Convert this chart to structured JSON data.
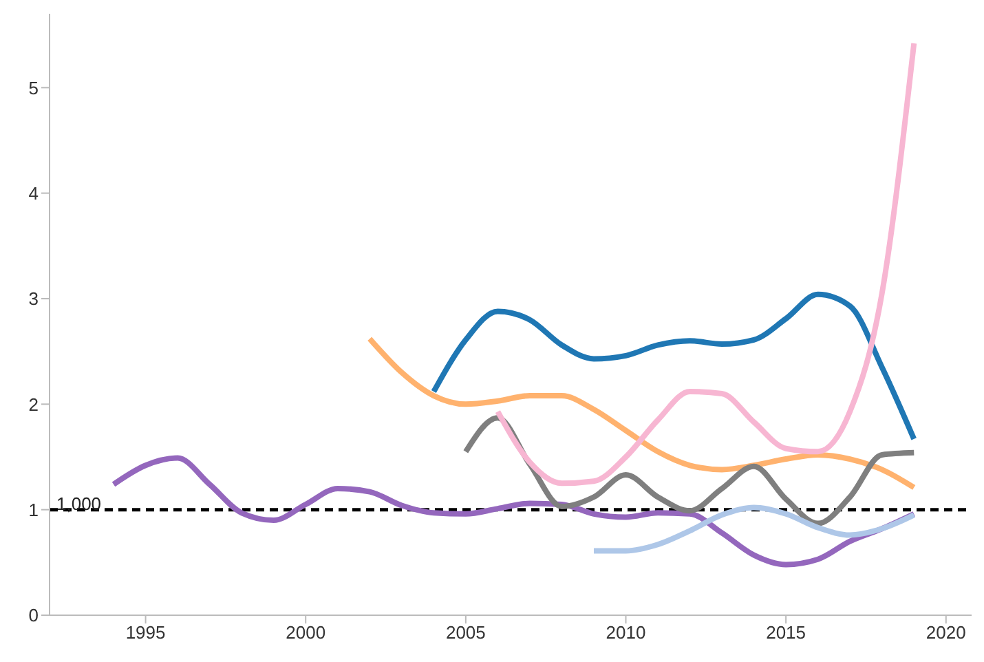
{
  "chart_data": {
    "type": "line",
    "xlim": [
      1992,
      2020.8
    ],
    "xticks": [
      1995,
      2000,
      2005,
      2010,
      2015,
      2020
    ],
    "ylim": [
      0,
      5.7
    ],
    "yticks": [
      0,
      1,
      2,
      3,
      4,
      5
    ],
    "grid": false,
    "legend": false,
    "marker": "none",
    "line_style": "solid",
    "ref_lines": [
      {
        "axis": "y",
        "value": 1,
        "label": "1,000",
        "color": "#000000",
        "line_style": "dashed"
      }
    ],
    "series": [
      {
        "color": "#9467bd",
        "x": [
          1994,
          1995,
          1996,
          1997,
          1998,
          1999,
          2000,
          2001,
          2002,
          2003,
          2004,
          2005,
          2006,
          2007,
          2008,
          2009,
          2010,
          2011,
          2012,
          2013,
          2014,
          2015,
          2016,
          2017,
          2018,
          2019
        ],
        "values": [
          1.24,
          1.42,
          1.49,
          1.24,
          0.97,
          0.9,
          1.05,
          1.2,
          1.17,
          1.04,
          0.97,
          0.96,
          1.01,
          1.06,
          1.05,
          0.96,
          0.93,
          0.97,
          0.96,
          0.78,
          0.57,
          0.48,
          0.53,
          0.7,
          0.82,
          0.96
        ]
      },
      {
        "color": "#ffb26e",
        "x": [
          2002,
          2003,
          2004,
          2005,
          2006,
          2007,
          2008,
          2009,
          2010,
          2011,
          2012,
          2013,
          2014,
          2015,
          2016,
          2017,
          2018,
          2019
        ],
        "values": [
          2.62,
          2.3,
          2.08,
          2.0,
          2.03,
          2.08,
          2.08,
          1.95,
          1.75,
          1.55,
          1.42,
          1.38,
          1.42,
          1.48,
          1.52,
          1.48,
          1.38,
          1.21
        ]
      },
      {
        "color": "#1f77b4",
        "x": [
          2004,
          2005,
          2006,
          2007,
          2008,
          2009,
          2010,
          2011,
          2012,
          2013,
          2014,
          2015,
          2016,
          2017,
          2018,
          2019
        ],
        "values": [
          2.12,
          2.61,
          2.88,
          2.8,
          2.56,
          2.43,
          2.46,
          2.56,
          2.6,
          2.57,
          2.61,
          2.81,
          3.04,
          2.93,
          2.35,
          1.67
        ]
      },
      {
        "color": "#7f7f7f",
        "x": [
          2005,
          2006,
          2007,
          2008,
          2009,
          2010,
          2011,
          2012,
          2013,
          2014,
          2015,
          2016,
          2017,
          2018,
          2019
        ],
        "values": [
          1.55,
          1.87,
          1.43,
          1.03,
          1.12,
          1.33,
          1.12,
          0.99,
          1.2,
          1.41,
          1.1,
          0.87,
          1.12,
          1.52,
          1.54
        ]
      },
      {
        "color": "#f7b6d2",
        "x": [
          2006,
          2007,
          2008,
          2009,
          2010,
          2011,
          2012,
          2013,
          2014,
          2015,
          2016,
          2017,
          2018,
          2019
        ],
        "values": [
          1.93,
          1.45,
          1.25,
          1.27,
          1.5,
          1.85,
          2.12,
          2.1,
          1.83,
          1.58,
          1.55,
          1.93,
          3.05,
          5.42
        ]
      },
      {
        "color": "#aec7e8",
        "x": [
          2009,
          2010,
          2011,
          2012,
          2013,
          2014,
          2015,
          2016,
          2017,
          2018,
          2019
        ],
        "values": [
          0.61,
          0.61,
          0.67,
          0.8,
          0.95,
          1.02,
          0.96,
          0.83,
          0.76,
          0.82,
          0.95
        ]
      }
    ]
  }
}
